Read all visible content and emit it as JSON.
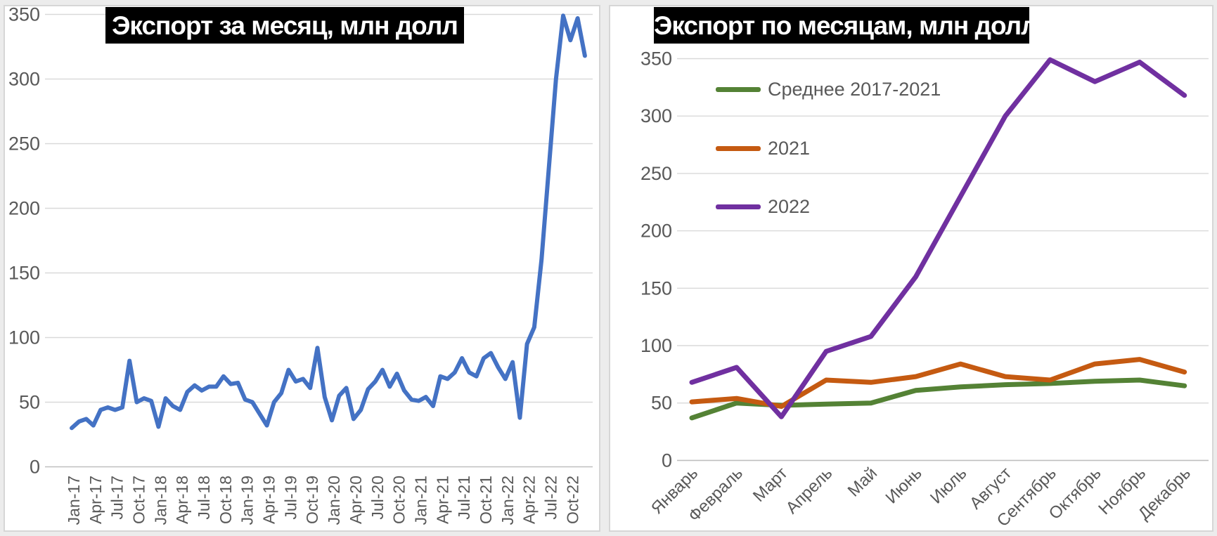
{
  "page": {
    "background": "#ececec",
    "card_background": "#ffffff",
    "card_border": "#d6d6d6"
  },
  "styles": {
    "title_bg": "#000000",
    "title_fg": "#ffffff",
    "gridline": "#d9d9d9",
    "axis_line": "#bfbfbf",
    "axis_text": "#595959"
  },
  "chart_data": [
    {
      "id": "monthly-export",
      "type": "line",
      "title": "Экспорт за месяц, млн долл",
      "ylim": [
        0,
        350
      ],
      "y_ticks": [
        0,
        50,
        100,
        150,
        200,
        250,
        300,
        350
      ],
      "grid": true,
      "legend_position": "none",
      "x_tick_every": 3,
      "x_tick_labels": [
        "Jan-17",
        "Apr-17",
        "Jul-17",
        "Oct-17",
        "Jan-18",
        "Apr-18",
        "Jul-18",
        "Oct-18",
        "Jan-19",
        "Apr-19",
        "Jul-19",
        "Oct-19",
        "Jan-20",
        "Apr-20",
        "Jul-20",
        "Oct-20",
        "Jan-21",
        "Apr-21",
        "Jul-21",
        "Oct-21",
        "Jan-22",
        "Apr-22",
        "Jul-22",
        "Oct-22"
      ],
      "series": [
        {
          "name": "",
          "color": "#4472C4",
          "width": 6,
          "values": [
            30,
            35,
            37,
            32,
            44,
            46,
            44,
            46,
            82,
            50,
            53,
            51,
            31,
            53,
            47,
            44,
            58,
            63,
            59,
            62,
            62,
            70,
            64,
            65,
            52,
            50,
            41,
            32,
            50,
            57,
            75,
            66,
            68,
            61,
            92,
            54,
            36,
            55,
            61,
            37,
            44,
            60,
            66,
            75,
            62,
            72,
            59,
            52,
            51,
            54,
            47,
            70,
            68,
            73,
            84,
            73,
            70,
            84,
            88,
            77,
            68,
            81,
            38,
            95,
            108,
            160,
            230,
            300,
            349,
            330,
            347,
            318
          ]
        }
      ]
    },
    {
      "id": "export-by-month",
      "type": "line",
      "title": "Экспорт по месяцам, млн долл",
      "ylim": [
        0,
        350
      ],
      "y_ticks": [
        0,
        50,
        100,
        150,
        200,
        250,
        300,
        350
      ],
      "grid": true,
      "legend_position": "inside-top-left",
      "categories": [
        "Январь",
        "Февраль",
        "Март",
        "Апрель",
        "Май",
        "Июнь",
        "Июль",
        "Август",
        "Сентябрь",
        "Октябрь",
        "Ноябрь",
        "Декабрь"
      ],
      "series": [
        {
          "name": "Среднее 2017-2021",
          "color": "#548235",
          "width": 7,
          "values": [
            37,
            50,
            48,
            49,
            50,
            61,
            64,
            66,
            67,
            69,
            70,
            65
          ]
        },
        {
          "name": "2021",
          "color": "#C55A11",
          "width": 7,
          "values": [
            51,
            54,
            47,
            70,
            68,
            73,
            84,
            73,
            70,
            84,
            88,
            77
          ]
        },
        {
          "name": "2022",
          "color": "#7030A0",
          "width": 7,
          "values": [
            68,
            81,
            38,
            95,
            108,
            160,
            230,
            300,
            349,
            330,
            347,
            318
          ]
        }
      ]
    }
  ]
}
